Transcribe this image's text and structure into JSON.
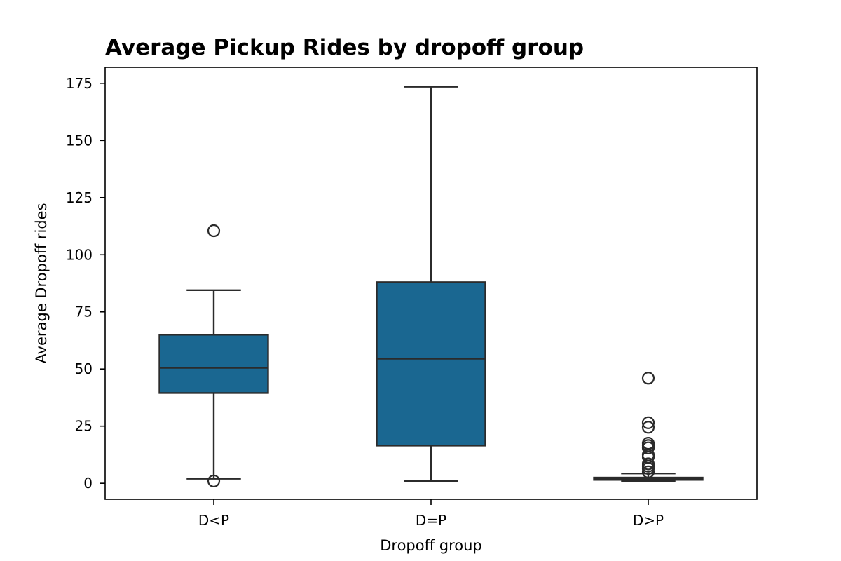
{
  "chart_data": {
    "type": "box",
    "title": "Average Pickup Rides by dropoff group",
    "xlabel": "Dropoff group",
    "ylabel": "Average Dropoff rides",
    "ylim": [
      -7,
      182
    ],
    "yticks": [
      0,
      25,
      50,
      75,
      100,
      125,
      150,
      175
    ],
    "ytick_labels": [
      "0",
      "25",
      "50",
      "75",
      "100",
      "125",
      "150",
      "175"
    ],
    "categories": [
      "D<P",
      "D=P",
      "D>P"
    ],
    "grid": false,
    "colors": {
      "box_fill": "#1a6791",
      "box_edge": "#2b2b2b",
      "axes": "#000000"
    },
    "boxes": [
      {
        "category": "D<P",
        "whisker_low": 2,
        "q1": 39.5,
        "median": 50.5,
        "q3": 65,
        "whisker_high": 84.5,
        "outliers": [
          110.5,
          1
        ]
      },
      {
        "category": "D=P",
        "whisker_low": 1,
        "q1": 16.5,
        "median": 54.5,
        "q3": 88,
        "whisker_high": 173.5,
        "outliers": []
      },
      {
        "category": "D>P",
        "whisker_low": 1,
        "q1": 1.5,
        "median": 2,
        "q3": 2.5,
        "whisker_high": 4.3,
        "outliers": [
          46,
          26.5,
          24.5,
          17.5,
          16.5,
          15.5,
          12.5,
          11.5,
          8.5,
          7.5,
          6.5,
          5
        ]
      }
    ]
  }
}
